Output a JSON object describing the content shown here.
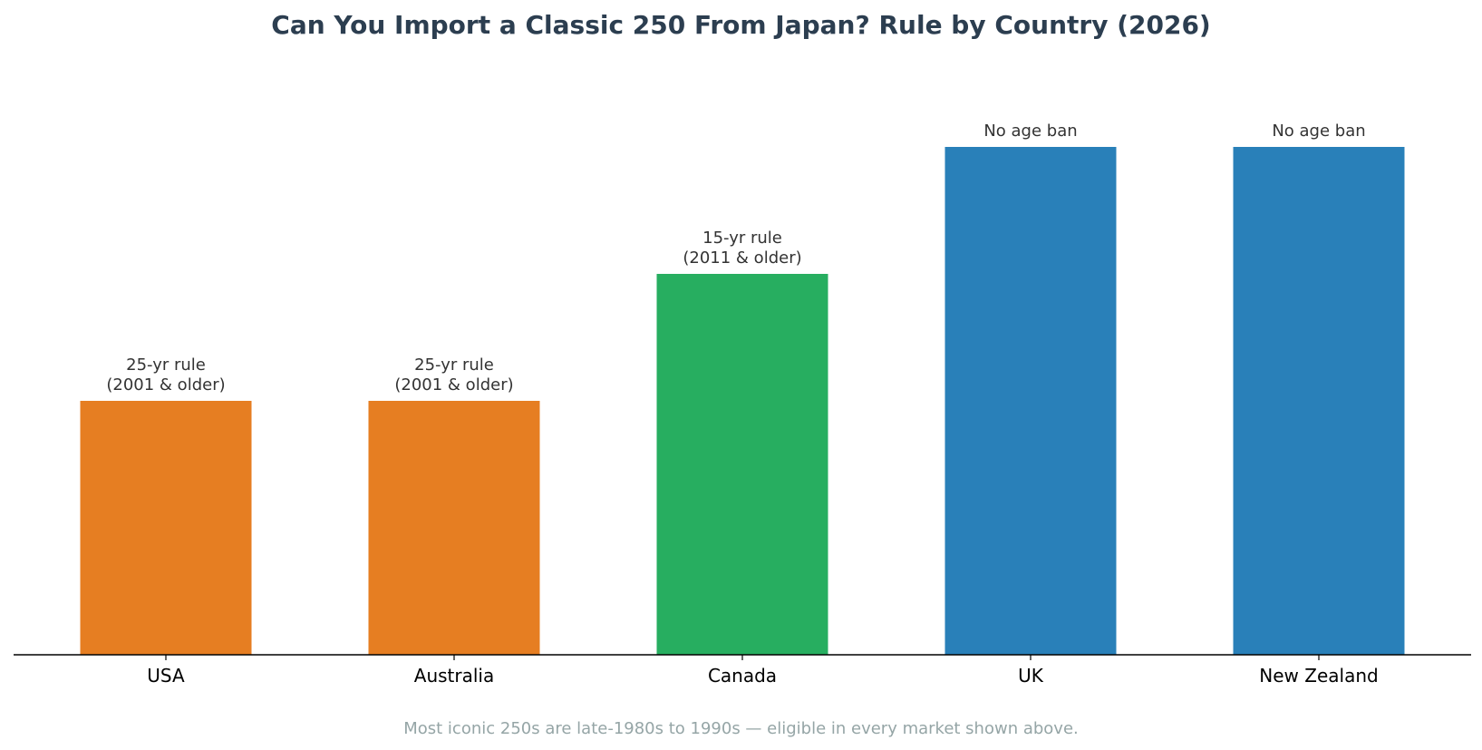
{
  "chart_data": {
    "type": "bar",
    "title": "Can You Import a Classic 250 From Japan? Rule by Country (2026)",
    "xlabel": "",
    "ylabel": "",
    "categories": [
      "USA",
      "Australia",
      "Canada",
      "UK",
      "New Zealand"
    ],
    "values": [
      1,
      1,
      1.5,
      2,
      2
    ],
    "ylim": [
      0,
      2.2
    ],
    "grid": false,
    "legend": "none",
    "bar_labels": [
      [
        "25-yr rule",
        "(2001 & older)"
      ],
      [
        "25-yr rule",
        "(2001 & older)"
      ],
      [
        "15-yr rule",
        "(2011 & older)"
      ],
      [
        "No age ban"
      ],
      [
        "No age ban"
      ]
    ],
    "colors": [
      "#e67e22",
      "#e67e22",
      "#27ae60",
      "#2980b9",
      "#2980b9"
    ],
    "footnote": "Most iconic 250s are late-1980s to 1990s — eligible in every market shown above."
  }
}
